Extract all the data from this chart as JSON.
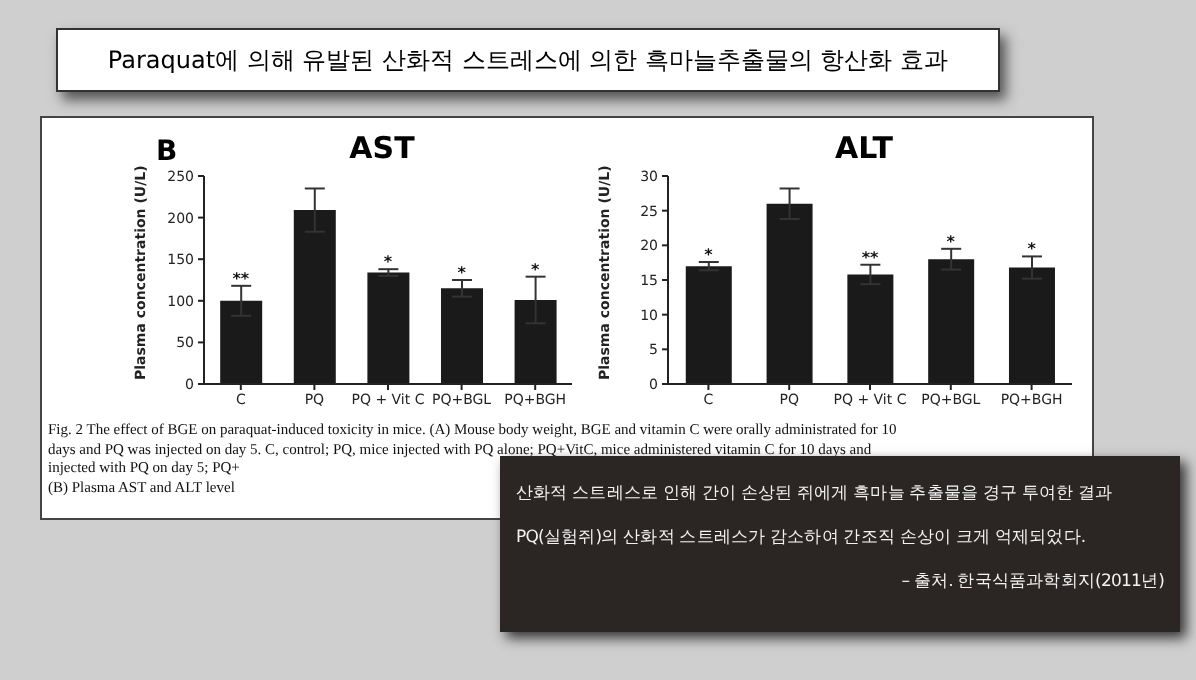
{
  "chart_data": [
    {
      "type": "bar",
      "title": "AST",
      "ylabel": "Plasma concentration (U/L)",
      "categories": [
        "C",
        "PQ",
        "PQ + Vit C",
        "PQ+BGL",
        "PQ+BGH"
      ],
      "values": [
        100,
        209,
        134,
        115,
        101
      ],
      "errors": [
        18,
        26,
        4,
        10,
        28
      ],
      "color": "#1a1a1a",
      "ylim": [
        0,
        250
      ],
      "yticks": [
        0,
        50,
        100,
        150,
        200,
        250
      ],
      "grid": false,
      "legend": false,
      "annotations": [
        "Paraquat에 의해 유발된 산화적 스트레스에 의한 흑마늘추출물의 항산화 효과",
        "B",
        "Fig. 2 The effect of BGE on paraquat-induced toxicity in mice. (A) Mouse body weight, BGE and vitamin C were orally administrated for 10",
        "days and PQ was injected on day 5. C, control; PQ, mice injected with PQ alone; PQ+VitC, mice administered vitamin C for 10 days and",
        "injected with PQ on day 5; PQ+",
        "(B) Plasma AST and ALT level",
        {
          "text": "**",
          "x": "C",
          "y": 118
        },
        {
          "text": "*",
          "x": "PQ + Vit C",
          "y": 138
        },
        {
          "text": "*",
          "x": "PQ+BGL",
          "y": 125
        },
        {
          "text": "*",
          "x": "PQ+BGH",
          "y": 129
        }
      ]
    },
    {
      "type": "bar",
      "title": "ALT",
      "ylabel": "Plasma concentration (U/L)",
      "categories": [
        "C",
        "PQ",
        "PQ + Vit C",
        "PQ+BGL",
        "PQ+BGH"
      ],
      "values": [
        17,
        26,
        15.8,
        18,
        16.8
      ],
      "errors": [
        0.6,
        2.2,
        1.4,
        1.5,
        1.6
      ],
      "color": "#1a1a1a",
      "ylim": [
        0,
        30
      ],
      "yticks": [
        0,
        5,
        10,
        15,
        20,
        25,
        30
      ],
      "grid": false,
      "legend": false,
      "annotations": [
        "산화적 스트레스로 인해 간이 손상된 쥐에게 흑마늘 추출물을 경구 투여한 결과",
        "PQ(실험쥐)의 산화적 스트레스가 감소하여 간조직 손상이 크게 억제되었다.",
        "– 출처. 한국식품과학회지(2011년)",
        {
          "text": "*",
          "x": "C",
          "y": 17.6
        },
        {
          "text": "**",
          "x": "PQ + Vit C",
          "y": 17.2
        },
        {
          "text": "*",
          "x": "PQ+BGL",
          "y": 19.5
        },
        {
          "text": "*",
          "x": "PQ+BGH",
          "y": 18.4
        }
      ]
    }
  ]
}
